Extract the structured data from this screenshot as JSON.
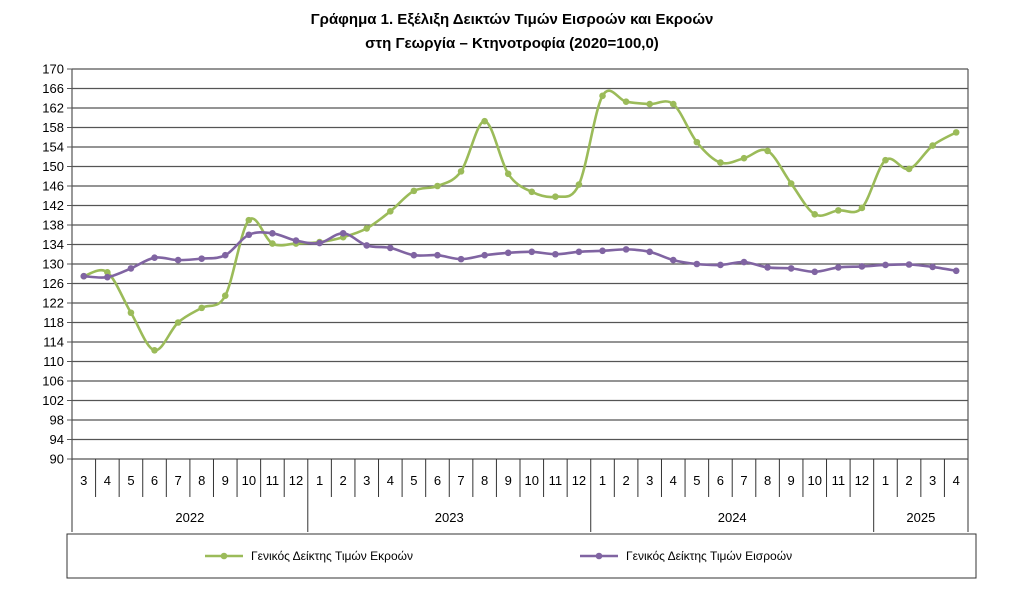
{
  "chart_data": {
    "type": "line",
    "title": "Γράφημα 1. Εξέλιξη Δεικτών Τιμών Εισροών και Εκροών",
    "subtitle": "στη Γεωργία – Κτηνοτροφία (2020=100,0)",
    "ylim": [
      90,
      170
    ],
    "yticks": [
      "170",
      "166",
      "162",
      "158",
      "154",
      "150",
      "146",
      "142",
      "138",
      "134",
      "130",
      "126",
      "122",
      "118",
      "114",
      "110",
      "106",
      "102",
      "98",
      "94",
      "90"
    ],
    "categories": [
      "3",
      "4",
      "5",
      "6",
      "7",
      "8",
      "9",
      "10",
      "11",
      "12",
      "1",
      "2",
      "3",
      "4",
      "5",
      "6",
      "7",
      "8",
      "9",
      "10",
      "11",
      "12",
      "1",
      "2",
      "3",
      "4",
      "5",
      "6",
      "7",
      "8",
      "9",
      "10",
      "11",
      "12",
      "1",
      "2",
      "3",
      "4"
    ],
    "years": [
      {
        "label": "2022",
        "count": 10
      },
      {
        "label": "2023",
        "count": 12
      },
      {
        "label": "2024",
        "count": 12
      },
      {
        "label": "2025",
        "count": 4
      }
    ],
    "grid": true,
    "legend_position": "bottom",
    "series": [
      {
        "name": "Γενικός Δείκτης Τιμών Εκροών",
        "color": "#9BBB59",
        "values": [
          127.5,
          128.3,
          120.0,
          112.3,
          118.0,
          121.0,
          123.5,
          139.0,
          134.2,
          134.2,
          134.5,
          135.5,
          137.3,
          140.8,
          145.0,
          146.0,
          149.0,
          159.3,
          148.5,
          144.8,
          143.8,
          146.3,
          164.5,
          163.3,
          162.8,
          162.8,
          155.0,
          150.8,
          151.7,
          153.2,
          146.5,
          140.2,
          141.0,
          141.5,
          151.3,
          149.5,
          154.3,
          157.0
        ]
      },
      {
        "name": "Γενικός Δείκτης Τιμών Εισροών",
        "color": "#8064A2",
        "values": [
          127.5,
          127.3,
          129.1,
          131.3,
          130.8,
          131.1,
          131.8,
          136.0,
          136.3,
          134.8,
          134.3,
          136.3,
          133.8,
          133.3,
          131.8,
          131.8,
          131.0,
          131.8,
          132.3,
          132.5,
          132.0,
          132.5,
          132.7,
          133.0,
          132.5,
          130.8,
          130.0,
          129.8,
          130.4,
          129.3,
          129.1,
          128.4,
          129.3,
          129.5,
          129.8,
          129.9,
          129.4,
          128.6
        ]
      }
    ]
  }
}
